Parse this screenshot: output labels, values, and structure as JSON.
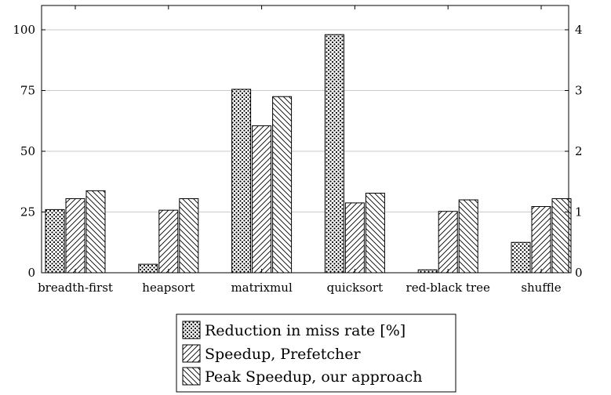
{
  "chart_data": {
    "type": "bar",
    "categories": [
      "breadth-first",
      "heapsort",
      "matrixmul",
      "quicksort",
      "red-black tree",
      "shuffle"
    ],
    "series": [
      {
        "name": "Reduction in miss rate [%]",
        "axis": "left",
        "pattern": "dots",
        "values": [
          26,
          3.5,
          75.5,
          98,
          1.2,
          12.5
        ]
      },
      {
        "name": "Speedup, Prefetcher",
        "axis": "right",
        "pattern": "north-east-lines",
        "values": [
          1.22,
          1.03,
          2.42,
          1.15,
          1.01,
          1.09
        ]
      },
      {
        "name": "Peak Speedup, our approach",
        "axis": "right",
        "pattern": "north-west-lines",
        "values": [
          1.35,
          1.22,
          2.9,
          1.31,
          1.2,
          1.22
        ]
      }
    ],
    "y_left": {
      "ylim": [
        0,
        110
      ],
      "ticks": [
        "0",
        "25",
        "50",
        "75",
        "100"
      ]
    },
    "y_right": {
      "ylim": [
        0,
        4.4
      ],
      "ticks": [
        "0",
        "1",
        "2",
        "3",
        "4"
      ]
    },
    "grid": "horizontal",
    "legend": "below"
  }
}
